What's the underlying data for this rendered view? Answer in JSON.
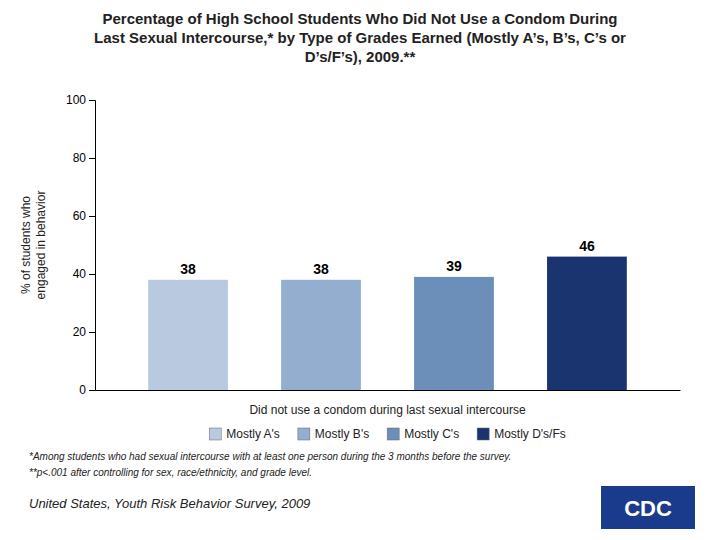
{
  "chart_data": {
    "type": "bar",
    "title": "Percentage of High School Students Who Did Not Use a Condom During\nLast Sexual Intercourse,* by Type of Grades Earned (Mostly A’s, B’s, C’s or\nD’s/F’s), 2009.**",
    "categories": [
      "Mostly A's",
      "Mostly B's",
      "Mostly C's",
      "Mostly D's/Fs"
    ],
    "values": [
      38,
      38,
      39,
      46
    ],
    "colors": [
      "#b8c9e0",
      "#93aece",
      "#6b8fb8",
      "#1a3470"
    ],
    "ylabel": "% of students who\nengaged in behavior",
    "xlabel": "Did not use a condom during last sexual intercourse",
    "ylim": [
      0,
      100
    ],
    "yticks": [
      0,
      20,
      40,
      60,
      80,
      100
    ],
    "grid": false,
    "legend": "bottom",
    "data_labels": true,
    "tick_labels": "y",
    "annotations": [
      "*Among students who had sexual intercourse with at least one person during the 3 months before the survey.",
      "**p<.001 after controlling for sex, race/ethnicity, and grade level.",
      "United States, Youth Risk Behavior Survey, 2009",
      "CDC"
    ]
  }
}
